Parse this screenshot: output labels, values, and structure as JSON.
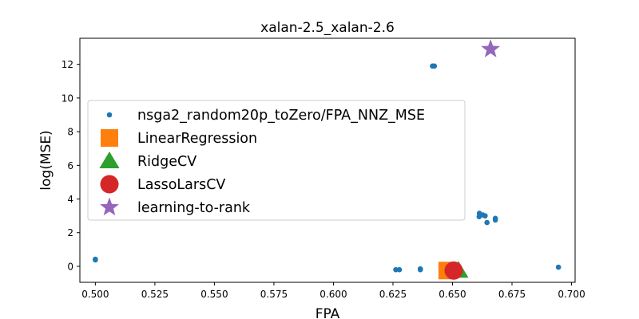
{
  "chart_data": {
    "type": "scatter",
    "title": "xalan-2.5_xalan-2.6",
    "xlabel": "FPA",
    "ylabel": "log(MSE)",
    "xlim": [
      0.4935,
      0.7015
    ],
    "ylim": [
      -0.95,
      13.55
    ],
    "xticks": [
      0.5,
      0.525,
      0.55,
      0.575,
      0.6,
      0.625,
      0.65,
      0.675,
      0.7
    ],
    "xtick_labels": [
      "0.500",
      "0.525",
      "0.550",
      "0.575",
      "0.600",
      "0.625",
      "0.650",
      "0.675",
      "0.700"
    ],
    "yticks": [
      0,
      2,
      4,
      6,
      8,
      10,
      12
    ],
    "ytick_labels": [
      "0",
      "2",
      "4",
      "6",
      "8",
      "10",
      "12"
    ],
    "grid": false,
    "legend_position": "center-left",
    "series": [
      {
        "name": "nsga2_random20p_toZero/FPA_NNZ_MSE",
        "marker": "dot",
        "color": "#1f77b4",
        "points": [
          {
            "x": 0.5,
            "y": 0.42
          },
          {
            "x": 0.5,
            "y": 0.38
          },
          {
            "x": 0.6262,
            "y": -0.2
          },
          {
            "x": 0.6277,
            "y": -0.2
          },
          {
            "x": 0.6365,
            "y": -0.15
          },
          {
            "x": 0.6365,
            "y": -0.2
          },
          {
            "x": 0.6416,
            "y": 11.9
          },
          {
            "x": 0.6424,
            "y": 11.9
          },
          {
            "x": 0.6613,
            "y": 3.15
          },
          {
            "x": 0.6618,
            "y": 3.05
          },
          {
            "x": 0.6612,
            "y": 2.95
          },
          {
            "x": 0.6628,
            "y": 3.05
          },
          {
            "x": 0.6637,
            "y": 3.0
          },
          {
            "x": 0.6645,
            "y": 2.6
          },
          {
            "x": 0.668,
            "y": 2.85
          },
          {
            "x": 0.668,
            "y": 2.75
          },
          {
            "x": 0.6945,
            "y": -0.05
          }
        ]
      },
      {
        "name": "LinearRegression",
        "marker": "square",
        "color": "#ff7f0e",
        "points": [
          {
            "x": 0.6478,
            "y": -0.25
          }
        ]
      },
      {
        "name": "RidgeCV",
        "marker": "triangle",
        "color": "#2ca02c",
        "points": [
          {
            "x": 0.6525,
            "y": -0.25
          }
        ]
      },
      {
        "name": "LassoLarsCV",
        "marker": "circle",
        "color": "#d62728",
        "points": [
          {
            "x": 0.6505,
            "y": -0.25
          }
        ]
      },
      {
        "name": "learning-to-rank",
        "marker": "star",
        "color": "#9467bd",
        "points": [
          {
            "x": 0.666,
            "y": 12.9
          }
        ]
      }
    ]
  }
}
